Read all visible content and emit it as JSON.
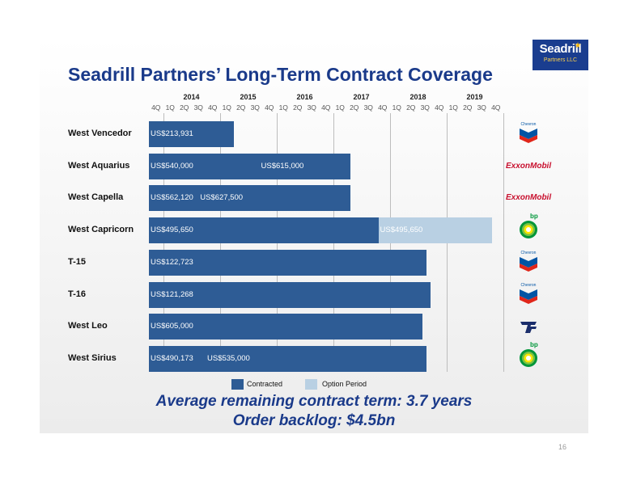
{
  "logo": {
    "name": "Seadrill",
    "subtitle": "Partners LLC"
  },
  "title": "Seadrill Partners’ Long-Term Contract Coverage",
  "page_number": "16",
  "summary": {
    "line1": "Average remaining contract term: 3.7 years",
    "line2": "Order backlog: $4.5bn"
  },
  "customer_labels": {
    "chevron": "Chevron",
    "exxon": "ExxonMobil",
    "bp": "bp"
  },
  "chart_data": {
    "type": "bar",
    "orientation": "horizontal-gantt",
    "years": [
      "2014",
      "2015",
      "2016",
      "2017",
      "2018",
      "2019"
    ],
    "quarter_labels": [
      "4Q",
      "1Q",
      "2Q",
      "3Q",
      "4Q",
      "1Q",
      "2Q",
      "3Q",
      "4Q",
      "1Q",
      "2Q",
      "3Q",
      "4Q",
      "1Q",
      "2Q",
      "3Q",
      "4Q",
      "1Q",
      "2Q",
      "3Q",
      "4Q",
      "1Q",
      "2Q",
      "3Q",
      "4Q"
    ],
    "x_unit": "quarters from 4Q 2013",
    "xlim": [
      0,
      25
    ],
    "legend": [
      "Contracted",
      "Option Period"
    ],
    "colors": {
      "contracted": "#2e5c95",
      "option": "#b9d0e3"
    },
    "rows": [
      {
        "vessel": "West Vencedor",
        "customer": "chevron",
        "segments": [
          {
            "kind": "contracted",
            "start": 0,
            "end": 6
          }
        ],
        "labels": [
          {
            "text": "US$213,931",
            "at": 0
          }
        ]
      },
      {
        "vessel": "West Aquarius",
        "customer": "exxon",
        "segments": [
          {
            "kind": "contracted",
            "start": 0,
            "end": 14.2
          }
        ],
        "labels": [
          {
            "text": "US$540,000",
            "at": 0
          },
          {
            "text": "US$615,000",
            "at": 7.8
          }
        ]
      },
      {
        "vessel": "West Capella",
        "customer": "exxon",
        "segments": [
          {
            "kind": "contracted",
            "start": 0,
            "end": 14.2
          }
        ],
        "labels": [
          {
            "text": "US$562,120",
            "at": 0
          },
          {
            "text": "US$627,500",
            "at": 3.5
          }
        ]
      },
      {
        "vessel": "West Capricorn",
        "customer": "bp",
        "segments": [
          {
            "kind": "contracted",
            "start": 0,
            "end": 16.2
          },
          {
            "kind": "option",
            "start": 16.2,
            "end": 24.2
          }
        ],
        "labels": [
          {
            "text": "US$495,650",
            "at": 0
          },
          {
            "text": "US$495,650",
            "at": 16.2
          }
        ]
      },
      {
        "vessel": "T-15",
        "customer": "chevron",
        "segments": [
          {
            "kind": "contracted",
            "start": 0,
            "end": 19.6
          }
        ],
        "labels": [
          {
            "text": "US$122,723",
            "at": 0
          }
        ]
      },
      {
        "vessel": "T-16",
        "customer": "chevron",
        "segments": [
          {
            "kind": "contracted",
            "start": 0,
            "end": 19.9
          }
        ],
        "labels": [
          {
            "text": "US$121,268",
            "at": 0
          }
        ]
      },
      {
        "vessel": "West Leo",
        "customer": "tullow",
        "segments": [
          {
            "kind": "contracted",
            "start": 0,
            "end": 19.3
          }
        ],
        "labels": [
          {
            "text": "US$605,000",
            "at": 0
          }
        ]
      },
      {
        "vessel": "West Sirius",
        "customer": "bp",
        "segments": [
          {
            "kind": "contracted",
            "start": 0,
            "end": 19.6
          }
        ],
        "labels": [
          {
            "text": "US$490,173",
            "at": 0
          },
          {
            "text": "US$535,000",
            "at": 4
          }
        ]
      }
    ]
  }
}
